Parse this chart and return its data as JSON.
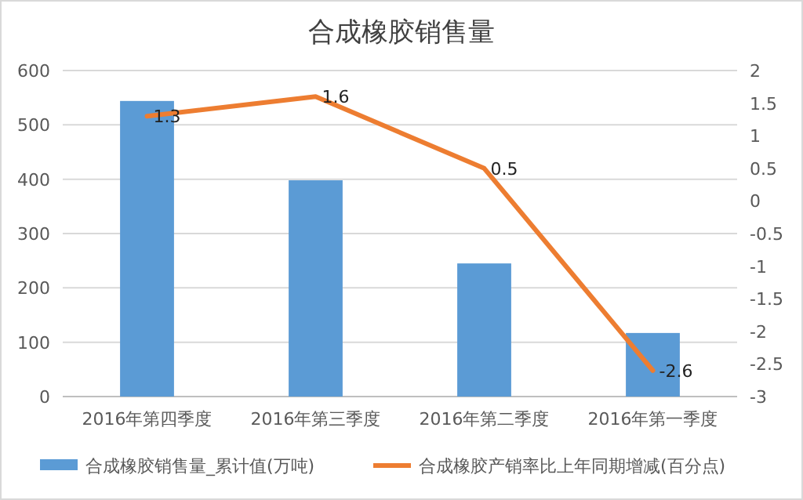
{
  "chart_data": {
    "type": "bar",
    "title": "合成橡胶销售量",
    "categories": [
      "2016年第四季度",
      "2016年第三季度",
      "2016年第二季度",
      "2016年第一季度"
    ],
    "series": [
      {
        "name": "合成橡胶销售量_累计值(万吨)",
        "color": "#5b9bd5",
        "values": [
          544,
          398,
          245,
          117
        ]
      },
      {
        "name": "合成橡胶产销率比上年同期增减(百分点)",
        "type": "line",
        "axis": "y2",
        "color": "#ed7d31",
        "values": [
          1.3,
          1.6,
          0.5,
          -2.6
        ],
        "value_labels": [
          "1.3",
          "1.6",
          "0.5",
          "-2.6"
        ]
      }
    ],
    "ylim": [
      0,
      600
    ],
    "yticks": [
      0,
      100,
      200,
      300,
      400,
      500,
      600
    ],
    "y2lim": [
      -3,
      2
    ],
    "y2ticks": [
      -3,
      -2.5,
      -2,
      -1.5,
      -1,
      -0.5,
      0,
      0.5,
      1,
      1.5,
      2
    ],
    "grid": "y",
    "legend": "bottom",
    "line_style": "solid",
    "marker": "none"
  }
}
